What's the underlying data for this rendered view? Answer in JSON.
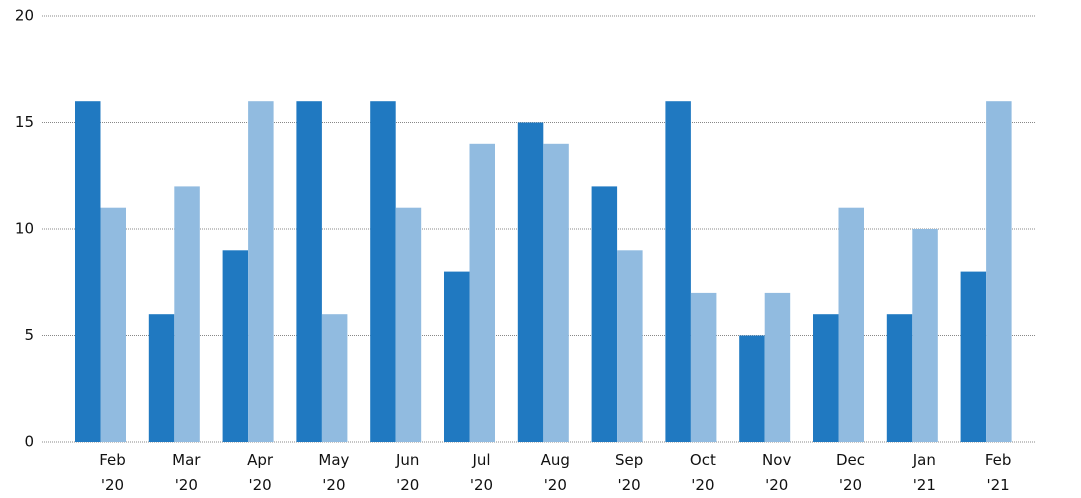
{
  "chart_data": {
    "type": "bar",
    "categories": [
      "Feb '20",
      "Mar '20",
      "Apr '20",
      "May '20",
      "Jun '20",
      "Jul '20",
      "Aug '20",
      "Sep '20",
      "Oct '20",
      "Nov '20",
      "Dec '20",
      "Jan '21",
      "Feb '21"
    ],
    "series": [
      {
        "color": "#2079c1",
        "values": [
          16,
          6,
          9,
          16,
          16,
          8,
          15,
          12,
          16,
          5,
          6,
          6,
          8
        ]
      },
      {
        "color": "#91bbe0",
        "values": [
          11,
          12,
          16,
          6,
          11,
          14,
          14,
          9,
          7,
          7,
          11,
          10,
          16
        ]
      }
    ],
    "ylim": [
      0,
      20
    ],
    "yticks": [
      0,
      5,
      10,
      15,
      20
    ],
    "grid": true
  }
}
